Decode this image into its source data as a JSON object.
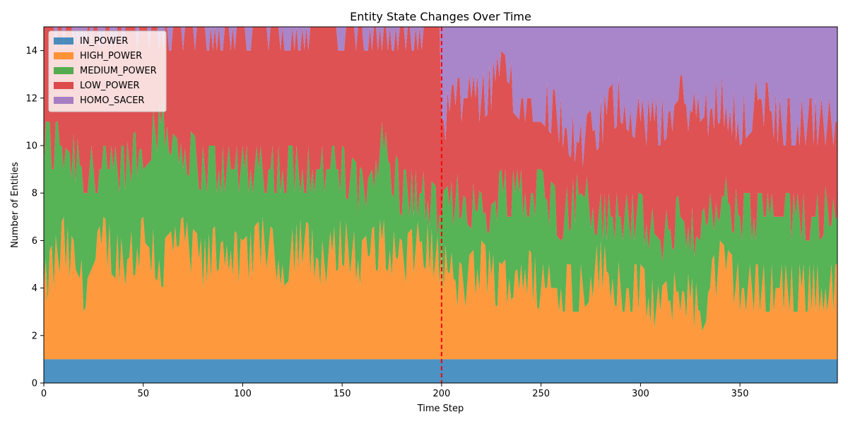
{
  "chart_data": {
    "type": "area",
    "title": "Entity State Changes Over Time",
    "xlabel": "Time Step",
    "ylabel": "Number of Entities",
    "xlim": [
      0,
      399
    ],
    "ylim": [
      0,
      15
    ],
    "xticks": [
      0,
      50,
      100,
      150,
      200,
      250,
      300,
      350
    ],
    "yticks": [
      0,
      2,
      4,
      6,
      8,
      10,
      12,
      14
    ],
    "grid": false,
    "legend_position": "top-left",
    "total_entities": 15,
    "annotation": {
      "type": "vertical-dashed-line",
      "x": 200,
      "color": "#ff0000"
    },
    "series": [
      {
        "name": "IN_POWER",
        "color": "#1f77b4",
        "stack_top_keyframes": [
          [
            0,
            1
          ],
          [
            399,
            1
          ]
        ]
      },
      {
        "name": "HIGH_POWER",
        "color": "#ff7f0e",
        "stack_top_keyframes": [
          [
            0,
            4
          ],
          [
            10,
            6
          ],
          [
            20,
            4
          ],
          [
            30,
            6
          ],
          [
            40,
            5
          ],
          [
            50,
            6
          ],
          [
            60,
            5
          ],
          [
            70,
            6
          ],
          [
            80,
            5
          ],
          [
            90,
            6
          ],
          [
            100,
            5
          ],
          [
            110,
            6
          ],
          [
            120,
            5
          ],
          [
            130,
            6
          ],
          [
            140,
            5
          ],
          [
            150,
            6
          ],
          [
            160,
            5
          ],
          [
            170,
            6
          ],
          [
            180,
            5
          ],
          [
            190,
            6
          ],
          [
            200,
            5
          ],
          [
            210,
            4
          ],
          [
            220,
            5
          ],
          [
            230,
            4
          ],
          [
            240,
            5
          ],
          [
            250,
            4
          ],
          [
            260,
            4
          ],
          [
            270,
            4
          ],
          [
            280,
            5
          ],
          [
            290,
            4
          ],
          [
            300,
            4
          ],
          [
            310,
            3
          ],
          [
            320,
            4
          ],
          [
            330,
            3
          ],
          [
            340,
            5
          ],
          [
            350,
            4
          ],
          [
            360,
            4
          ],
          [
            370,
            4
          ],
          [
            380,
            4
          ],
          [
            390,
            4
          ],
          [
            399,
            4
          ]
        ]
      },
      {
        "name": "MEDIUM_POWER",
        "color": "#2ca02c",
        "stack_top_keyframes": [
          [
            0,
            10
          ],
          [
            10,
            10
          ],
          [
            20,
            9
          ],
          [
            30,
            9
          ],
          [
            40,
            9
          ],
          [
            50,
            10
          ],
          [
            60,
            11
          ],
          [
            70,
            10
          ],
          [
            80,
            9
          ],
          [
            90,
            9
          ],
          [
            100,
            9
          ],
          [
            110,
            9
          ],
          [
            120,
            9
          ],
          [
            130,
            9
          ],
          [
            140,
            9
          ],
          [
            150,
            9
          ],
          [
            160,
            8
          ],
          [
            170,
            10
          ],
          [
            180,
            8
          ],
          [
            190,
            8
          ],
          [
            200,
            7
          ],
          [
            210,
            8
          ],
          [
            220,
            7
          ],
          [
            230,
            8
          ],
          [
            240,
            8
          ],
          [
            250,
            8
          ],
          [
            260,
            7
          ],
          [
            270,
            8
          ],
          [
            280,
            7
          ],
          [
            290,
            7
          ],
          [
            300,
            7
          ],
          [
            310,
            6
          ],
          [
            320,
            7
          ],
          [
            330,
            6
          ],
          [
            340,
            8
          ],
          [
            350,
            7
          ],
          [
            360,
            7
          ],
          [
            370,
            7
          ],
          [
            380,
            7
          ],
          [
            390,
            7
          ],
          [
            399,
            8
          ]
        ]
      },
      {
        "name": "LOW_POWER",
        "color": "#d62728",
        "stack_top_keyframes": [
          [
            0,
            15
          ],
          [
            199,
            15
          ],
          [
            200,
            11
          ],
          [
            210,
            12
          ],
          [
            220,
            12
          ],
          [
            230,
            13
          ],
          [
            240,
            12
          ],
          [
            250,
            12
          ],
          [
            260,
            11
          ],
          [
            270,
            10
          ],
          [
            280,
            11
          ],
          [
            290,
            12
          ],
          [
            300,
            11
          ],
          [
            310,
            11
          ],
          [
            320,
            12
          ],
          [
            330,
            11
          ],
          [
            340,
            12
          ],
          [
            350,
            11
          ],
          [
            360,
            12
          ],
          [
            370,
            11
          ],
          [
            380,
            11
          ],
          [
            390,
            11
          ],
          [
            399,
            11
          ]
        ]
      },
      {
        "name": "HOMO_SACER",
        "color": "#9467bd",
        "stack_top_keyframes": [
          [
            0,
            15
          ],
          [
            399,
            15
          ]
        ]
      }
    ]
  }
}
